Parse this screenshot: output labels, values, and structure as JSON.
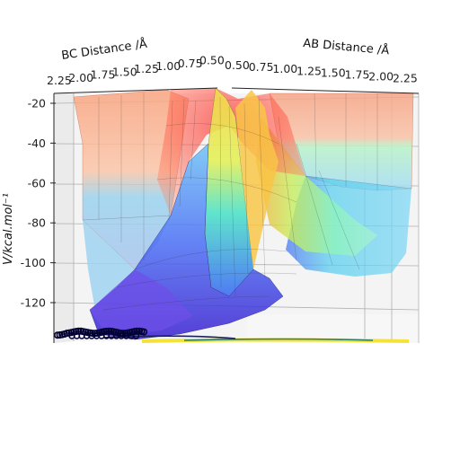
{
  "chart_data": {
    "type": "surface3d",
    "title": "",
    "axes": {
      "bc": {
        "label": "BC Distance /Å",
        "ticks": [
          "0.50",
          "0.75",
          "1.00",
          "1.25",
          "1.50",
          "1.75",
          "2.00",
          "2.25"
        ],
        "range": [
          0.5,
          2.25
        ]
      },
      "ab": {
        "label": "AB Distance /Å",
        "ticks": [
          "0.50",
          "0.75",
          "1.00",
          "1.25",
          "1.50",
          "1.75",
          "2.00",
          "2.25"
        ],
        "range": [
          0.5,
          2.25
        ]
      },
      "v": {
        "label": "V/kcal.mol⁻¹",
        "ticks": [
          "-20",
          "-40",
          "-60",
          "-80",
          "-100",
          "-120"
        ],
        "range": [
          -135,
          -20
        ]
      }
    },
    "surface": {
      "colormap": "jet",
      "features": {
        "asymptote_large_distance": -100,
        "entrance_channel_plateau": -78,
        "repulsive_wall": -20,
        "saddle_height": -40,
        "minimum": -135
      }
    },
    "grid": true,
    "trajectory_color": "#000033",
    "contour_colors": [
      "#2a7f62",
      "#f2e03a",
      "#1b1f60"
    ]
  }
}
